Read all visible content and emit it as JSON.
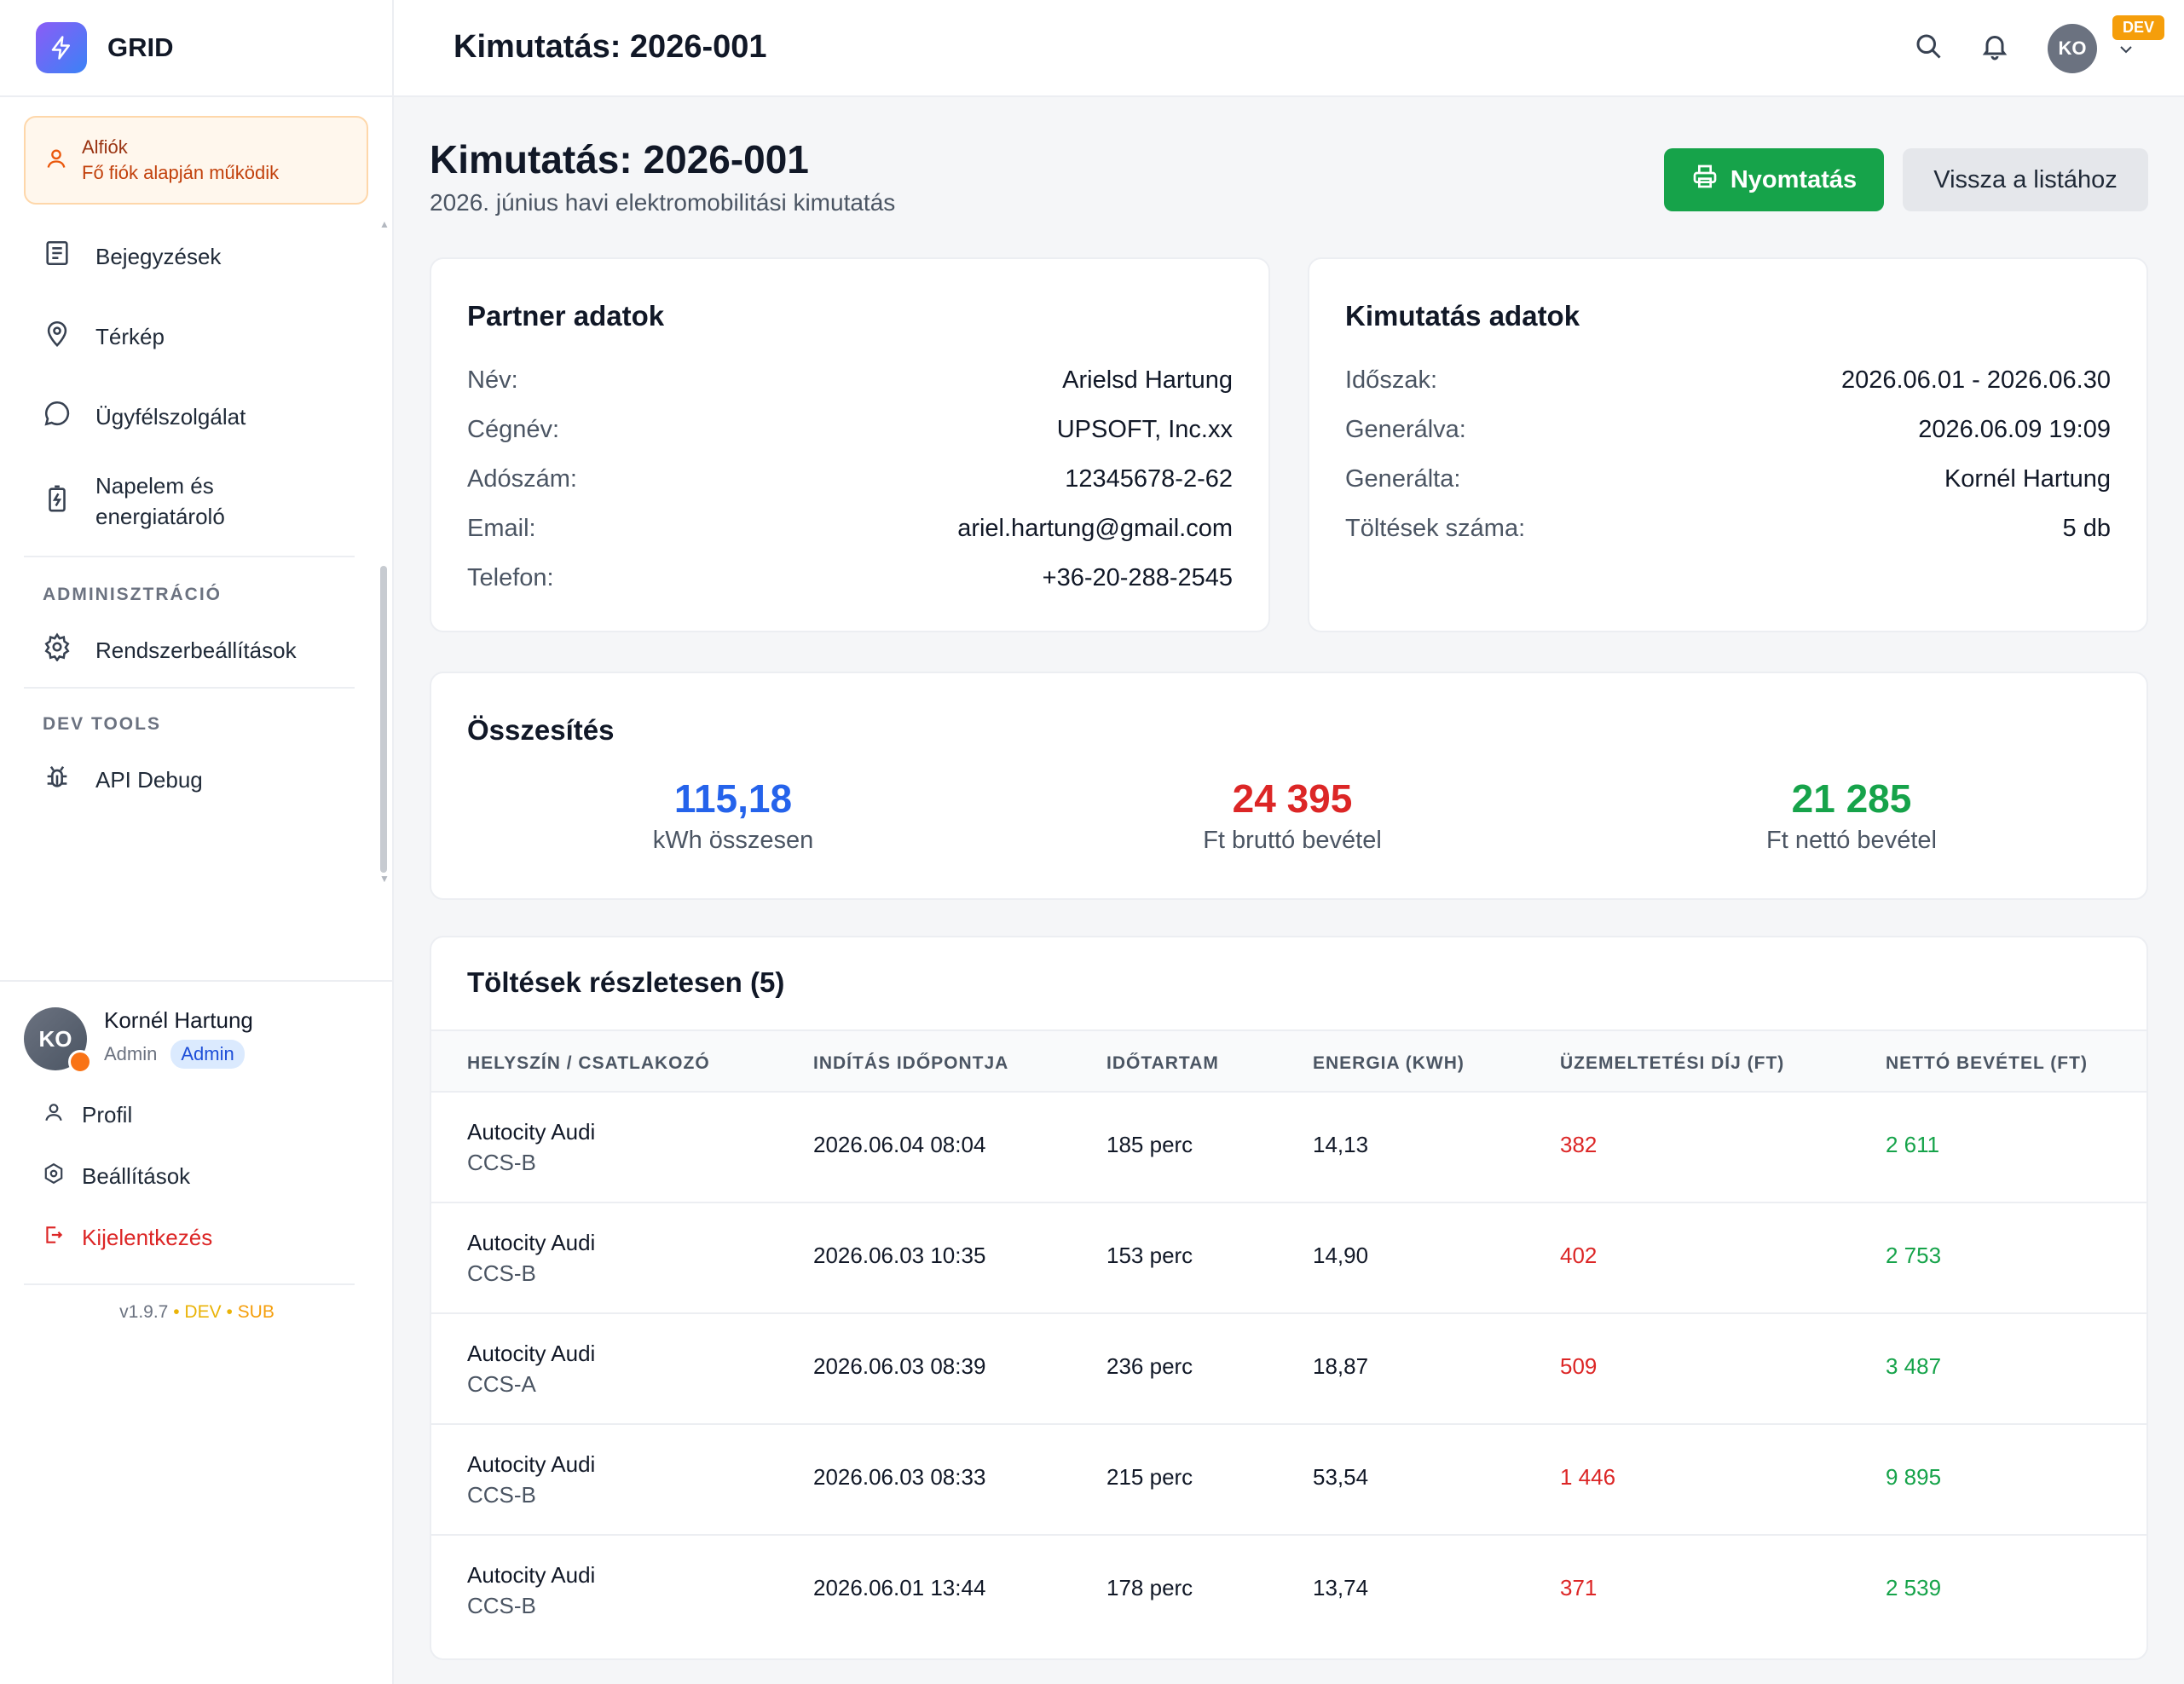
{
  "app": {
    "name": "GRID"
  },
  "alert": {
    "title": "Alfiók",
    "subtitle": "Fő fiók alapján működik"
  },
  "sidebar": {
    "items": [
      {
        "label": "Bejegyzések"
      },
      {
        "label": "Térkép"
      },
      {
        "label": "Ügyfélszolgálat"
      },
      {
        "label_line1": "Napelem és",
        "label_line2": "energiatároló"
      }
    ],
    "section_admin": "ADMINISZTRÁCIÓ",
    "admin_items": [
      {
        "label": "Rendszerbeállítások"
      }
    ],
    "section_dev": "DEV TOOLS",
    "dev_items": [
      {
        "label": "API Debug"
      }
    ]
  },
  "user": {
    "initials": "KO",
    "name": "Kornél Hartung",
    "role": "Admin",
    "role_badge": "Admin",
    "links": {
      "profile": "Profil",
      "settings": "Beállítások",
      "logout": "Kijelentkezés"
    }
  },
  "version": {
    "number": "v1.9.7",
    "sep": "•",
    "env": "DEV",
    "tag": "SUB"
  },
  "topbar": {
    "title": "Kimutatás: 2026-001",
    "avatar": "KO",
    "env_badge": "DEV"
  },
  "page": {
    "title": "Kimutatás: 2026-001",
    "subtitle": "2026. június havi elektromobilitási kimutatás",
    "print_label": "Nyomtatás",
    "back_label": "Vissza a listához"
  },
  "partner": {
    "title": "Partner adatok",
    "rows": [
      {
        "k": "Név:",
        "v": "Arielsd Hartung"
      },
      {
        "k": "Cégnév:",
        "v": "UPSOFT, Inc.xx"
      },
      {
        "k": "Adószám:",
        "v": "12345678-2-62"
      },
      {
        "k": "Email:",
        "v": "ariel.hartung@gmail.com"
      },
      {
        "k": "Telefon:",
        "v": "+36-20-288-2545"
      }
    ]
  },
  "report": {
    "title": "Kimutatás adatok",
    "rows": [
      {
        "k": "Időszak:",
        "v": "2026.06.01 - 2026.06.30"
      },
      {
        "k": "Generálva:",
        "v": "2026.06.09 19:09"
      },
      {
        "k": "Generálta:",
        "v": "Kornél Hartung"
      },
      {
        "k": "Töltések száma:",
        "v": "5 db"
      }
    ]
  },
  "summary": {
    "title": "Összesítés",
    "stats": [
      {
        "value": "115,18",
        "label": "kWh összesen",
        "color": "#2563eb"
      },
      {
        "value": "24 395",
        "label": "Ft bruttó bevétel",
        "color": "#dc2626"
      },
      {
        "value": "21 285",
        "label": "Ft nettó bevétel",
        "color": "#16a34a"
      }
    ]
  },
  "charges": {
    "title": "Töltések részletesen (5)",
    "columns": [
      "HELYSZÍN / CSATLAKOZÓ",
      "INDÍTÁS IDŐPONTJA",
      "IDŐTARTAM",
      "ENERGIA (KWH)",
      "ÜZEMELTETÉSI DÍJ (FT)",
      "NETTÓ BEVÉTEL (FT)"
    ],
    "rows": [
      {
        "location": "Autocity Audi",
        "connector": "CCS-B",
        "start": "2026.06.04 08:04",
        "duration": "185 perc",
        "energy": "14,13",
        "fee": "382",
        "net": "2 611"
      },
      {
        "location": "Autocity Audi",
        "connector": "CCS-B",
        "start": "2026.06.03 10:35",
        "duration": "153 perc",
        "energy": "14,90",
        "fee": "402",
        "net": "2 753"
      },
      {
        "location": "Autocity Audi",
        "connector": "CCS-A",
        "start": "2026.06.03 08:39",
        "duration": "236 perc",
        "energy": "18,87",
        "fee": "509",
        "net": "3 487"
      },
      {
        "location": "Autocity Audi",
        "connector": "CCS-B",
        "start": "2026.06.03 08:33",
        "duration": "215 perc",
        "energy": "53,54",
        "fee": "1 446",
        "net": "9 895"
      },
      {
        "location": "Autocity Audi",
        "connector": "CCS-B",
        "start": "2026.06.01 13:44",
        "duration": "178 perc",
        "energy": "13,74",
        "fee": "371",
        "net": "2 539"
      }
    ]
  },
  "colors": {
    "accent_green": "#16a34a",
    "accent_red": "#dc2626",
    "accent_blue": "#2563eb",
    "warning": "#f59e0b"
  },
  "icons": [
    "bolt-icon",
    "user-icon",
    "document-icon",
    "map-pin-icon",
    "chat-icon",
    "battery-icon",
    "gear-icon",
    "bug-icon",
    "search-icon",
    "bell-icon",
    "chevron-down-icon",
    "printer-icon",
    "logout-icon"
  ]
}
